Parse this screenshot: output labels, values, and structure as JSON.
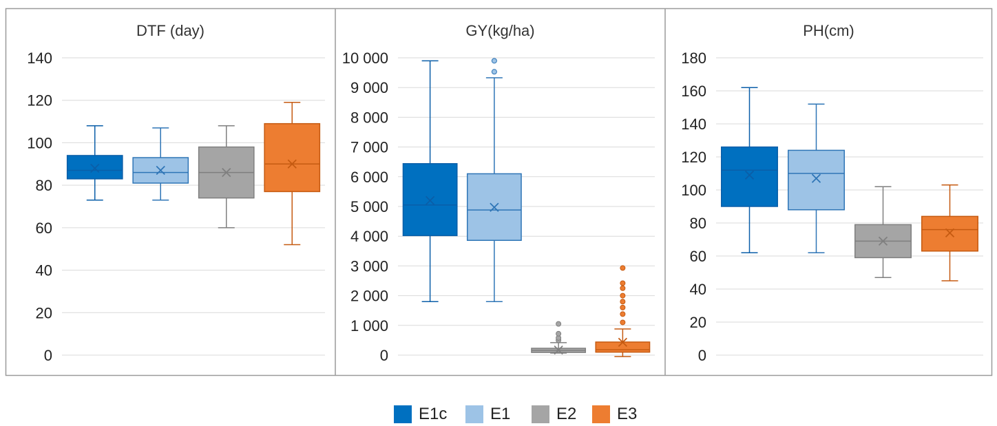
{
  "chart_data": [
    {
      "type": "box",
      "title": "DTF (day)",
      "ylim": [
        0,
        140
      ],
      "yticks": [
        "0",
        "20",
        "40",
        "60",
        "80",
        "100",
        "120",
        "140"
      ],
      "grid": true,
      "series": [
        {
          "name": "E1c",
          "min": 73,
          "q1": 83,
          "median": 87,
          "q3": 94,
          "max": 108,
          "mean": 88,
          "outliers": []
        },
        {
          "name": "E1",
          "min": 73,
          "q1": 81,
          "median": 86,
          "q3": 93,
          "max": 107,
          "mean": 87,
          "outliers": []
        },
        {
          "name": "E2",
          "min": 60,
          "q1": 74,
          "median": 86,
          "q3": 98,
          "max": 108,
          "mean": 86,
          "outliers": []
        },
        {
          "name": "E3",
          "min": 52,
          "q1": 77,
          "median": 90,
          "q3": 109,
          "max": 119,
          "mean": 90,
          "outliers": []
        }
      ]
    },
    {
      "type": "box",
      "title": "GY(kg/ha)",
      "ylim": [
        0,
        10000
      ],
      "yticks": [
        "0",
        "1 000",
        "2 000",
        "3 000",
        "4 000",
        "5 000",
        "6 000",
        "7 000",
        "8 000",
        "9 000",
        "10 000"
      ],
      "grid": true,
      "series": [
        {
          "name": "E1c",
          "min": 1800,
          "q1": 4020,
          "median": 5050,
          "q3": 6440,
          "max": 9900,
          "mean": 5200,
          "outliers": []
        },
        {
          "name": "E1",
          "min": 1800,
          "q1": 3860,
          "median": 4880,
          "q3": 6100,
          "max": 9330,
          "mean": 4970,
          "outliers": [
            9530,
            9900
          ]
        },
        {
          "name": "E2",
          "min": 70,
          "q1": 90,
          "median": 160,
          "q3": 230,
          "max": 420,
          "mean": 170,
          "outliers": [
            500,
            580,
            720,
            1050
          ]
        },
        {
          "name": "E3",
          "min": -50,
          "q1": 100,
          "median": 180,
          "q3": 440,
          "max": 880,
          "mean": 430,
          "outliers": [
            1100,
            1380,
            1600,
            1800,
            2000,
            2250,
            2420,
            2930
          ]
        }
      ]
    },
    {
      "type": "box",
      "title": "PH(cm)",
      "ylim": [
        0,
        180
      ],
      "yticks": [
        "0",
        "20",
        "40",
        "60",
        "80",
        "100",
        "120",
        "140",
        "160",
        "180"
      ],
      "grid": true,
      "series": [
        {
          "name": "E1c",
          "min": 62,
          "q1": 90,
          "median": 112,
          "q3": 126,
          "max": 162,
          "mean": 109,
          "outliers": []
        },
        {
          "name": "E1",
          "min": 62,
          "q1": 88,
          "median": 110,
          "q3": 124,
          "max": 152,
          "mean": 107,
          "outliers": []
        },
        {
          "name": "E2",
          "min": 47,
          "q1": 59,
          "median": 69,
          "q3": 79,
          "max": 102,
          "mean": 69,
          "outliers": []
        },
        {
          "name": "E3",
          "min": 45,
          "q1": 63,
          "median": 76,
          "q3": 84,
          "max": 103,
          "mean": 74,
          "outliers": []
        }
      ]
    }
  ],
  "legend": {
    "placement": "bottom",
    "items": [
      {
        "label": "E1c",
        "color": "#0070c0"
      },
      {
        "label": "E1",
        "color": "#9dc3e6"
      },
      {
        "label": "E2",
        "color": "#a5a5a5"
      },
      {
        "label": "E3",
        "color": "#ed7d31"
      }
    ]
  },
  "colors": {
    "E1c": {
      "fill": "#0070c0",
      "stroke": "#0a5ea8"
    },
    "E1": {
      "fill": "#9dc3e6",
      "stroke": "#2e75b6"
    },
    "E2": {
      "fill": "#a5a5a5",
      "stroke": "#7f7f7f"
    },
    "E3": {
      "fill": "#ed7d31",
      "stroke": "#c55a11"
    }
  }
}
